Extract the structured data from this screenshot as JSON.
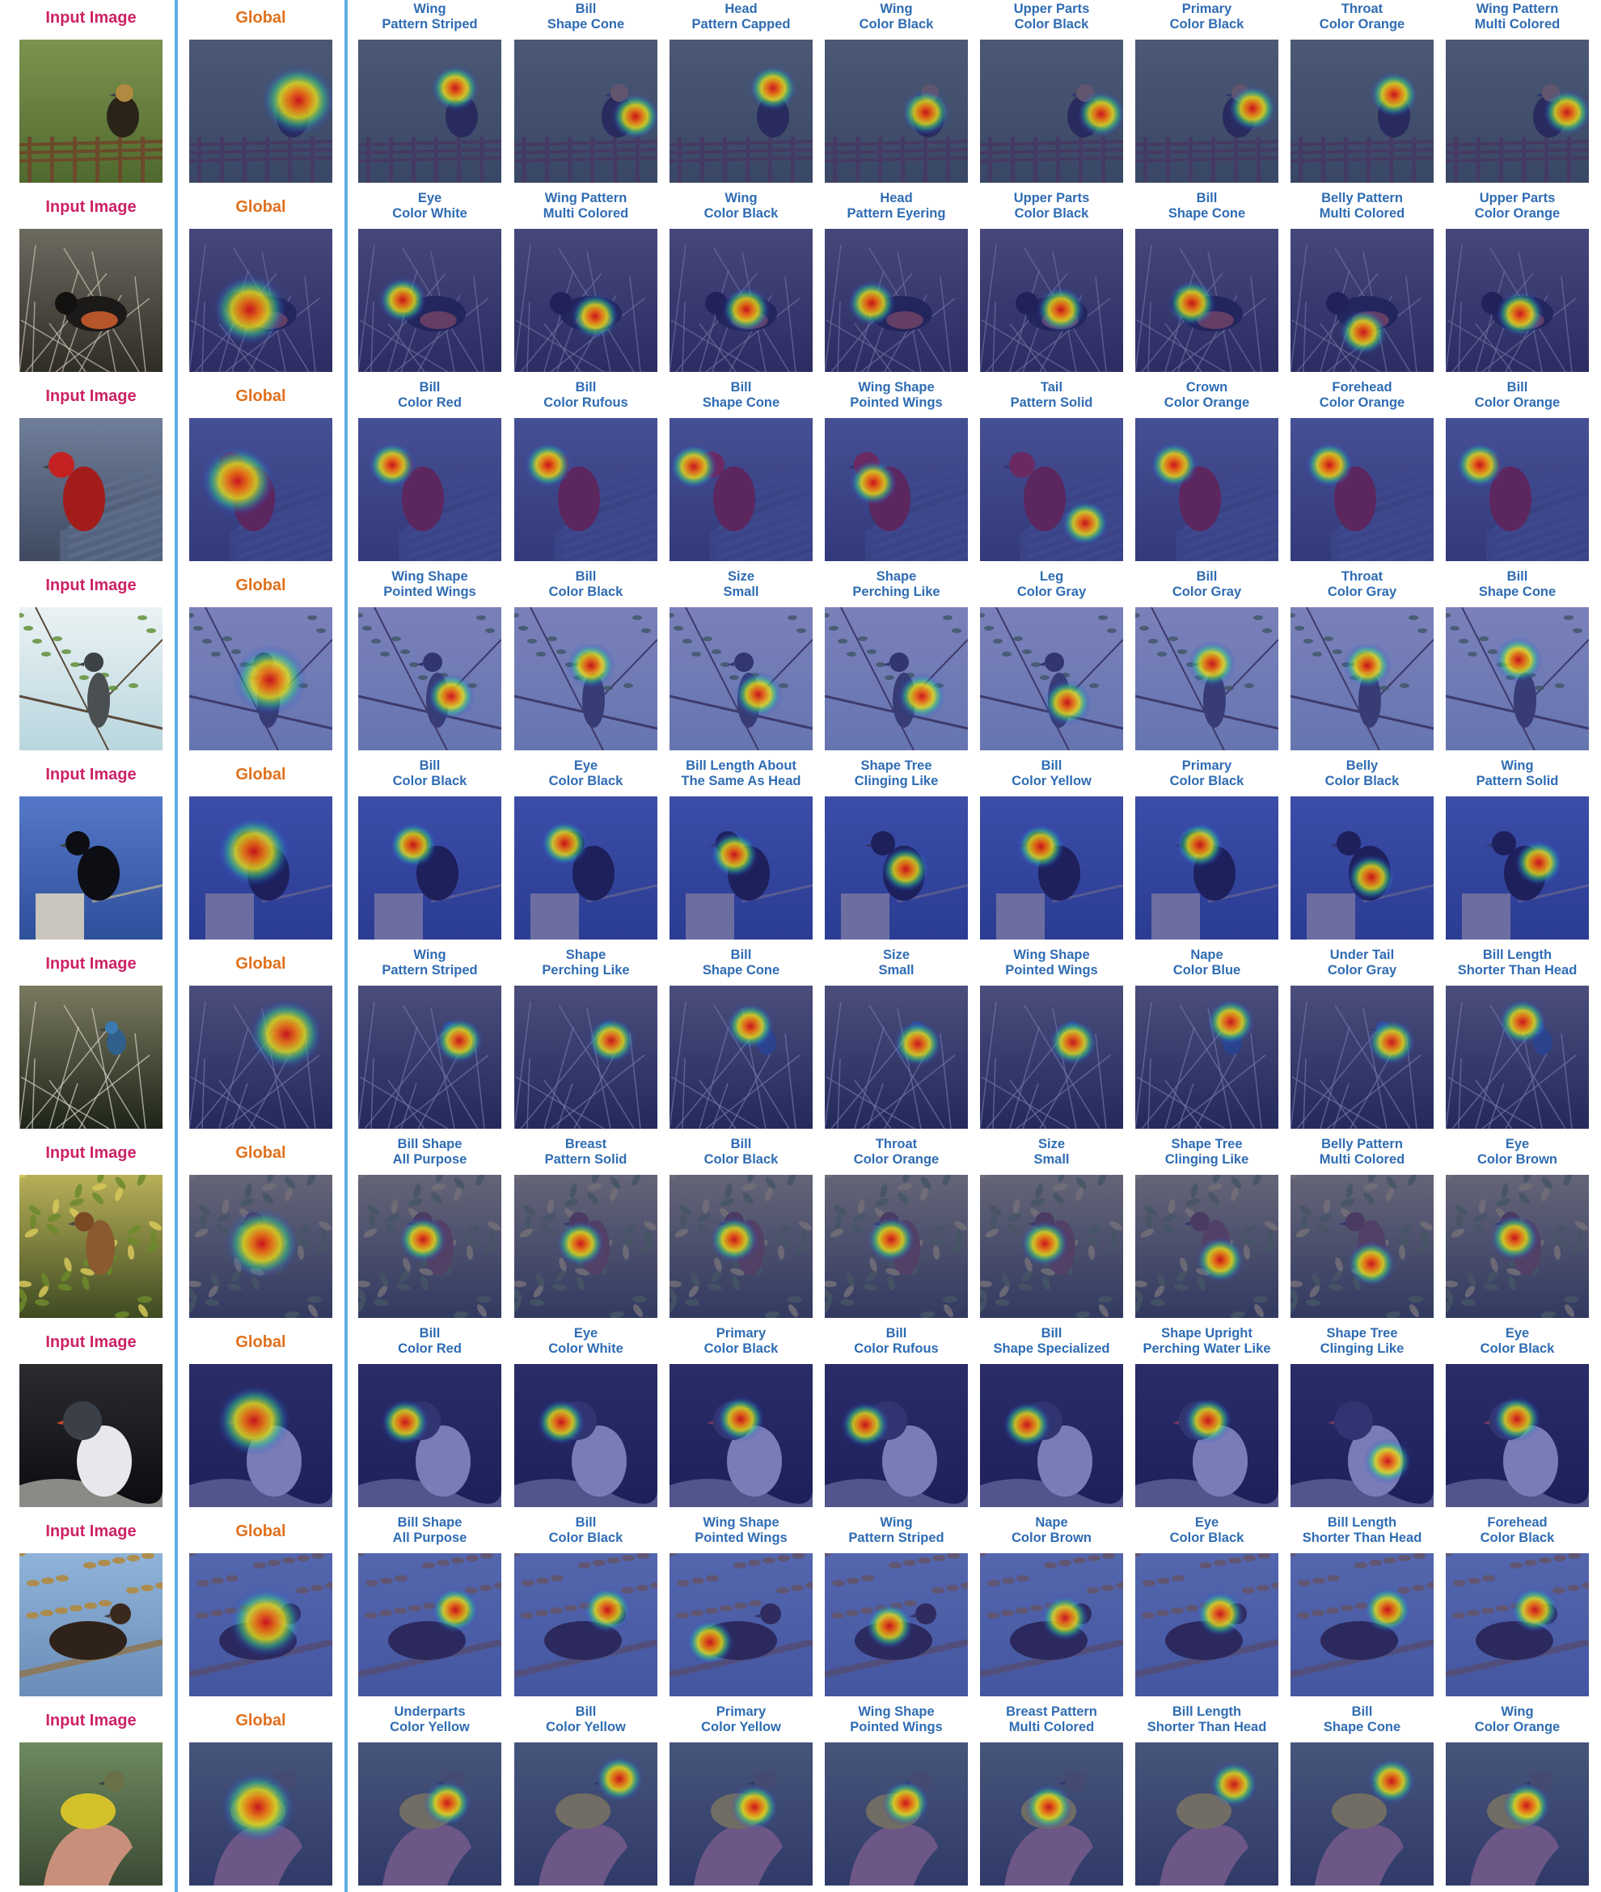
{
  "figure": {
    "colors": {
      "input_label": "#cc2266",
      "global_label": "#e0701c",
      "attribute_label": "#2f6cb3",
      "divider": "#5dade2",
      "overlay": "#2a2f8f"
    },
    "rows": [
      {
        "input_label": "Input Image",
        "global_label": "Global",
        "scene": "dark-bird-on-fence-green-background",
        "attributes": [
          {
            "line1": "Wing",
            "line2": "Pattern Striped"
          },
          {
            "line1": "Bill",
            "line2": "Shape Cone"
          },
          {
            "line1": "Head",
            "line2": "Pattern Capped"
          },
          {
            "line1": "Wing",
            "line2": "Color Black"
          },
          {
            "line1": "Upper Parts",
            "line2": "Color Black"
          },
          {
            "line1": "Primary",
            "line2": "Color Black"
          },
          {
            "line1": "Throat",
            "line2": "Color Orange"
          },
          {
            "line1": "Wing Pattern",
            "line2": "Multi Colored"
          }
        ]
      },
      {
        "input_label": "Input Image",
        "global_label": "Global",
        "scene": "towhee-among-branches",
        "attributes": [
          {
            "line1": "Eye",
            "line2": "Color White"
          },
          {
            "line1": "Wing Pattern",
            "line2": "Multi Colored"
          },
          {
            "line1": "Wing",
            "line2": "Color Black"
          },
          {
            "line1": "Head",
            "line2": "Pattern Eyering"
          },
          {
            "line1": "Upper Parts",
            "line2": "Color Black"
          },
          {
            "line1": "Bill",
            "line2": "Shape Cone"
          },
          {
            "line1": "Belly Pattern",
            "line2": "Multi Colored"
          },
          {
            "line1": "Upper Parts",
            "line2": "Color Orange"
          }
        ]
      },
      {
        "input_label": "Input Image",
        "global_label": "Global",
        "scene": "red-cardinal-on-wood",
        "attributes": [
          {
            "line1": "Bill",
            "line2": "Color Red"
          },
          {
            "line1": "Bill",
            "line2": "Color Rufous"
          },
          {
            "line1": "Bill",
            "line2": "Shape Cone"
          },
          {
            "line1": "Wing Shape",
            "line2": "Pointed Wings"
          },
          {
            "line1": "Tail",
            "line2": "Pattern Solid"
          },
          {
            "line1": "Crown",
            "line2": "Color Orange"
          },
          {
            "line1": "Forehead",
            "line2": "Color Orange"
          },
          {
            "line1": "Bill",
            "line2": "Color Orange"
          }
        ]
      },
      {
        "input_label": "Input Image",
        "global_label": "Global",
        "scene": "gray-bird-on-branch-pale-sky",
        "attributes": [
          {
            "line1": "Wing Shape",
            "line2": "Pointed Wings"
          },
          {
            "line1": "Bill",
            "line2": "Color Black"
          },
          {
            "line1": "Size",
            "line2": "Small"
          },
          {
            "line1": "Shape",
            "line2": "Perching Like"
          },
          {
            "line1": "Leg",
            "line2": "Color Gray"
          },
          {
            "line1": "Bill",
            "line2": "Color Gray"
          },
          {
            "line1": "Throat",
            "line2": "Color Gray"
          },
          {
            "line1": "Bill",
            "line2": "Shape Cone"
          }
        ]
      },
      {
        "input_label": "Input Image",
        "global_label": "Global",
        "scene": "black-bird-on-post-blue-sky",
        "attributes": [
          {
            "line1": "Bill",
            "line2": "Color Black"
          },
          {
            "line1": "Eye",
            "line2": "Color Black"
          },
          {
            "line1": "Bill Length About",
            "line2": "The Same As Head"
          },
          {
            "line1": "Shape Tree",
            "line2": "Clinging Like"
          },
          {
            "line1": "Bill",
            "line2": "Color Yellow"
          },
          {
            "line1": "Primary",
            "line2": "Color Black"
          },
          {
            "line1": "Belly",
            "line2": "Color Black"
          },
          {
            "line1": "Wing",
            "line2": "Pattern Solid"
          }
        ]
      },
      {
        "input_label": "Input Image",
        "global_label": "Global",
        "scene": "small-blue-bird-on-bare-twigs",
        "attributes": [
          {
            "line1": "Wing",
            "line2": "Pattern Striped"
          },
          {
            "line1": "Shape",
            "line2": "Perching Like"
          },
          {
            "line1": "Bill",
            "line2": "Shape Cone"
          },
          {
            "line1": "Size",
            "line2": "Small"
          },
          {
            "line1": "Wing Shape",
            "line2": "Pointed Wings"
          },
          {
            "line1": "Nape",
            "line2": "Color Blue"
          },
          {
            "line1": "Under Tail",
            "line2": "Color Gray"
          },
          {
            "line1": "Bill Length",
            "line2": "Shorter Than Head"
          }
        ]
      },
      {
        "input_label": "Input Image",
        "global_label": "Global",
        "scene": "brown-bird-in-leafy-tree",
        "attributes": [
          {
            "line1": "Bill Shape",
            "line2": "All Purpose"
          },
          {
            "line1": "Breast",
            "line2": "Pattern Solid"
          },
          {
            "line1": "Bill",
            "line2": "Color Black"
          },
          {
            "line1": "Throat",
            "line2": "Color Orange"
          },
          {
            "line1": "Size",
            "line2": "Small"
          },
          {
            "line1": "Shape Tree",
            "line2": "Clinging Like"
          },
          {
            "line1": "Belly Pattern",
            "line2": "Multi Colored"
          },
          {
            "line1": "Eye",
            "line2": "Color Brown"
          }
        ]
      },
      {
        "input_label": "Input Image",
        "global_label": "Global",
        "scene": "white-bird-with-red-bill-dark-background",
        "attributes": [
          {
            "line1": "Bill",
            "line2": "Color Red"
          },
          {
            "line1": "Eye",
            "line2": "Color White"
          },
          {
            "line1": "Primary",
            "line2": "Color Black"
          },
          {
            "line1": "Bill",
            "line2": "Color Rufous"
          },
          {
            "line1": "Bill",
            "line2": "Shape Specialized"
          },
          {
            "line1": "Shape Upright",
            "line2": "Perching Water Like"
          },
          {
            "line1": "Shape Tree",
            "line2": "Clinging Like"
          },
          {
            "line1": "Eye",
            "line2": "Color Black"
          }
        ]
      },
      {
        "input_label": "Input Image",
        "global_label": "Global",
        "scene": "dark-bird-on-branch-autumn-leaves",
        "attributes": [
          {
            "line1": "Bill Shape",
            "line2": "All Purpose"
          },
          {
            "line1": "Bill",
            "line2": "Color Black"
          },
          {
            "line1": "Wing Shape",
            "line2": "Pointed Wings"
          },
          {
            "line1": "Wing",
            "line2": "Pattern Striped"
          },
          {
            "line1": "Nape",
            "line2": "Color Brown"
          },
          {
            "line1": "Eye",
            "line2": "Color Black"
          },
          {
            "line1": "Bill Length",
            "line2": "Shorter Than Head"
          },
          {
            "line1": "Forehead",
            "line2": "Color Black"
          }
        ]
      },
      {
        "input_label": "Input Image",
        "global_label": "Global",
        "scene": "yellow-bird-held-in-hand",
        "attributes": [
          {
            "line1": "Underparts",
            "line2": "Color Yellow"
          },
          {
            "line1": "Bill",
            "line2": "Color Yellow"
          },
          {
            "line1": "Primary",
            "line2": "Color Yellow"
          },
          {
            "line1": "Wing Shape",
            "line2": "Pointed Wings"
          },
          {
            "line1": "Breast Pattern",
            "line2": "Multi Colored"
          },
          {
            "line1": "Bill Length",
            "line2": "Shorter Than Head"
          },
          {
            "line1": "Bill",
            "line2": "Shape Cone"
          },
          {
            "line1": "Wing",
            "line2": "Color Orange"
          }
        ]
      }
    ]
  }
}
